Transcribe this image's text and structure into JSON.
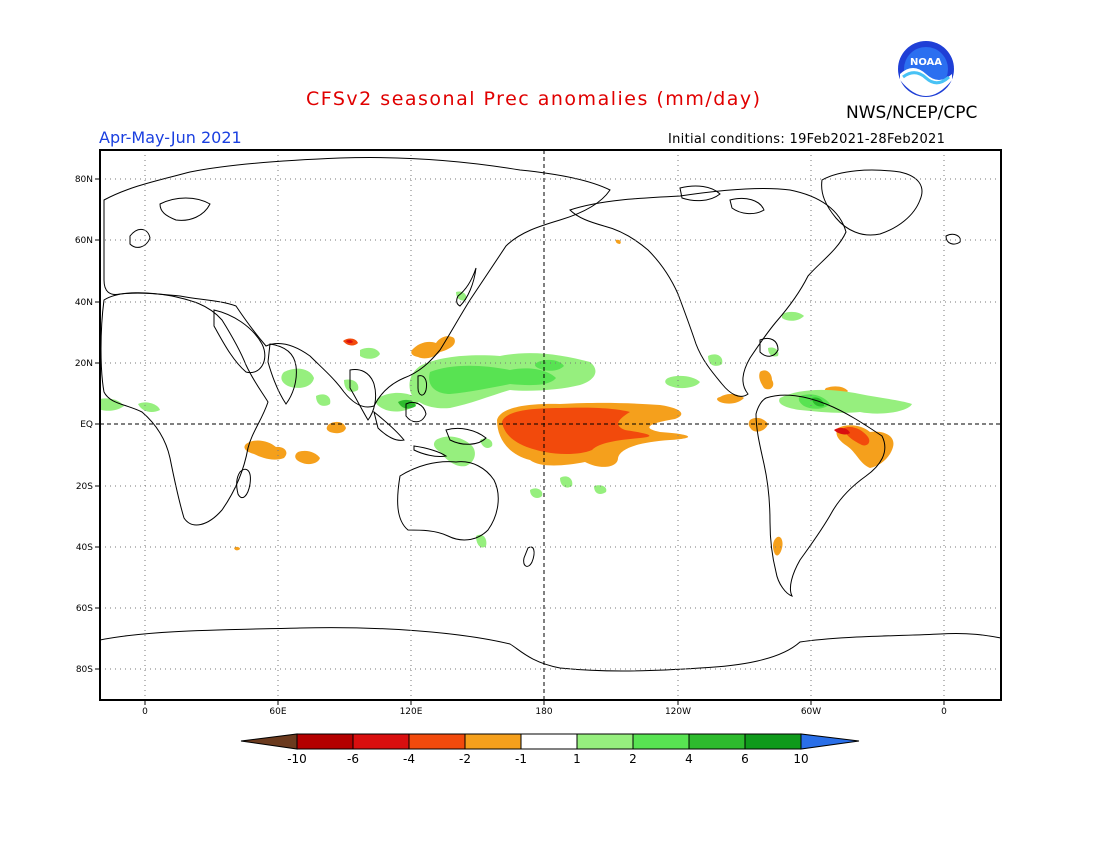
{
  "header": {
    "title": "CFSv2 seasonal Prec anomalies (mm/day)",
    "season": "Apr-May-Jun 2021",
    "initial_conditions": "Initial conditions: 19Feb2021-28Feb2021",
    "agency": "NWS/NCEP/CPC",
    "logo_text": "NOAA"
  },
  "axes": {
    "lat_labels": [
      "80N",
      "60N",
      "40N",
      "20N",
      "EQ",
      "20S",
      "40S",
      "60S",
      "80S"
    ],
    "lon_labels": [
      "0",
      "60E",
      "120E",
      "180",
      "120W",
      "60W",
      "0"
    ]
  },
  "colorbar": {
    "labels": [
      "-10",
      "-6",
      "-4",
      "-2",
      "-1",
      "1",
      "2",
      "4",
      "6",
      "10"
    ],
    "colors": {
      "lt_m10": "#6b3a1e",
      "m10_m6": "#b40000",
      "m6_m4": "#d90f0f",
      "m4_m2": "#f24a0c",
      "m2_m1": "#f5a01c",
      "m1_1": "#ffffff",
      "1_2": "#96ef7e",
      "2_4": "#58e352",
      "4_6": "#2dbb2d",
      "6_10": "#0f9a1b",
      "gt_10": "#2a6fe8"
    }
  }
}
